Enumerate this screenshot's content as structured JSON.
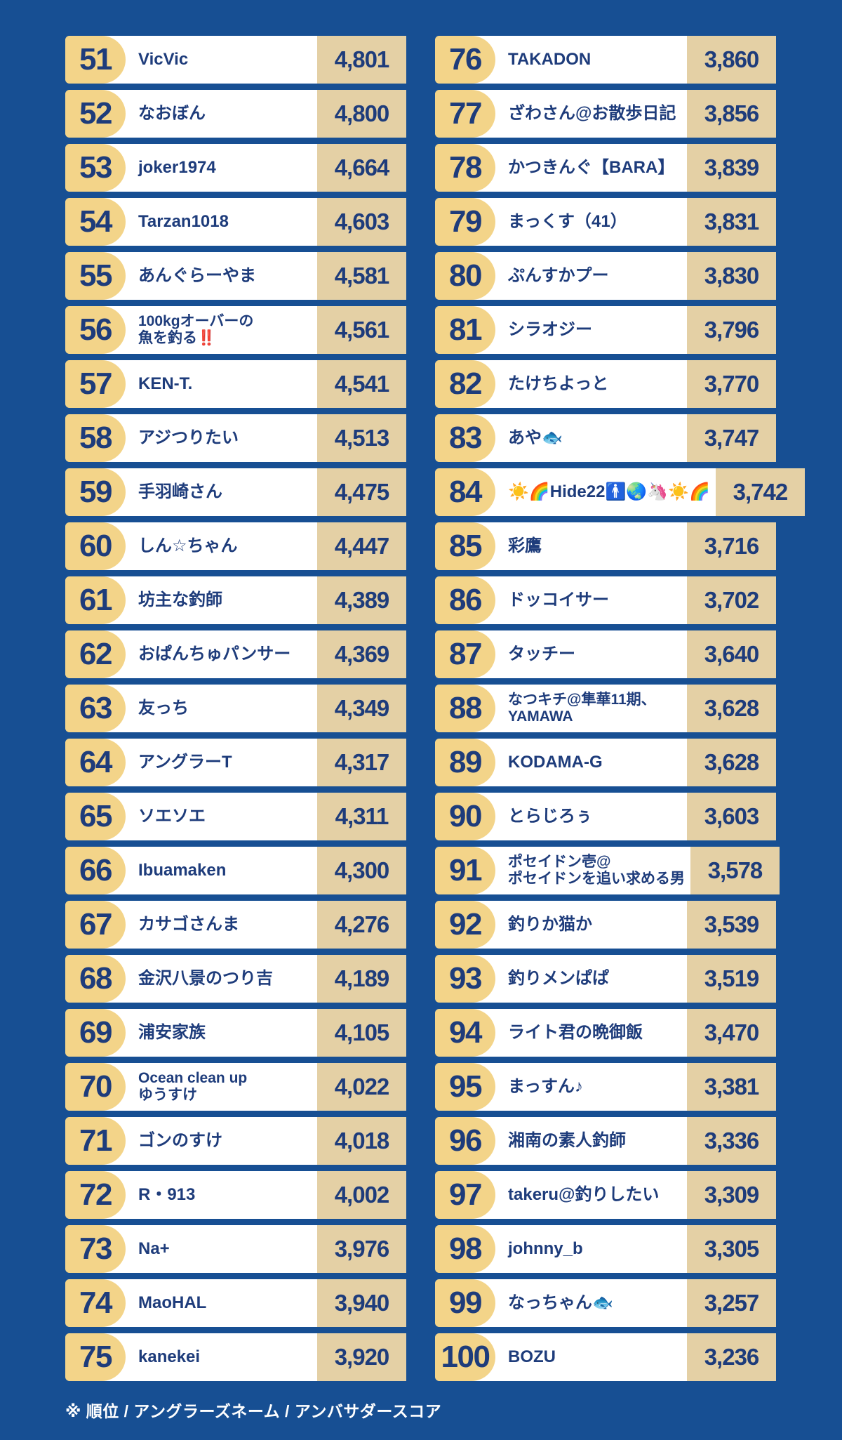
{
  "colors": {
    "background": "#174f93",
    "card": "#ffffff",
    "rank_badge": "#f3d489",
    "score_box": "#e4d0a5",
    "text_navy": "#1e3c7b",
    "footer_text": "#ffffff",
    "alert_red": "#e0342b"
  },
  "legend": {
    "note": "※ 順位 / アングラーズネーム / アンバサダースコア"
  },
  "chart_data": {
    "type": "table",
    "field_labels": [
      "順位",
      "アングラーズネーム",
      "アンバサダースコア"
    ],
    "layout": "two-column ranking list, ranks 51-75 left and 76-100 right",
    "columns": [
      {
        "name": "ranks-51-75",
        "rows": [
          {
            "rank": "51",
            "name": "VicVic",
            "score": "4,801"
          },
          {
            "rank": "52",
            "name": "なおぼん",
            "score": "4,800"
          },
          {
            "rank": "53",
            "name": "joker1974",
            "score": "4,664"
          },
          {
            "rank": "54",
            "name": "Tarzan1018",
            "score": "4,603"
          },
          {
            "rank": "55",
            "name": "あんぐらーやま",
            "score": "4,581"
          },
          {
            "rank": "56",
            "name": [
              "100kgオーバーの",
              "魚を釣る‼️"
            ],
            "score": "4,561"
          },
          {
            "rank": "57",
            "name": "KEN-T.",
            "score": "4,541"
          },
          {
            "rank": "58",
            "name": "アジつりたい",
            "score": "4,513"
          },
          {
            "rank": "59",
            "name": "手羽崎さん",
            "score": "4,475"
          },
          {
            "rank": "60",
            "name": "しん☆ちゃん",
            "score": "4,447"
          },
          {
            "rank": "61",
            "name": "坊主な釣師",
            "score": "4,389"
          },
          {
            "rank": "62",
            "name": "おぱんちゅパンサー",
            "score": "4,369"
          },
          {
            "rank": "63",
            "name": "友っち",
            "score": "4,349"
          },
          {
            "rank": "64",
            "name": "アングラーT",
            "score": "4,317"
          },
          {
            "rank": "65",
            "name": "ソエソエ",
            "score": "4,311"
          },
          {
            "rank": "66",
            "name": "Ibuamaken",
            "score": "4,300"
          },
          {
            "rank": "67",
            "name": "カサゴさんま",
            "score": "4,276"
          },
          {
            "rank": "68",
            "name": "金沢八景のつり吉",
            "score": "4,189"
          },
          {
            "rank": "69",
            "name": "浦安家族",
            "score": "4,105"
          },
          {
            "rank": "70",
            "name": [
              "Ocean clean up",
              "ゆうすけ"
            ],
            "score": "4,022"
          },
          {
            "rank": "71",
            "name": "ゴンのすけ",
            "score": "4,018"
          },
          {
            "rank": "72",
            "name": "R・913",
            "score": "4,002"
          },
          {
            "rank": "73",
            "name": "Na+",
            "score": "3,976"
          },
          {
            "rank": "74",
            "name": "MaoHAL",
            "score": "3,940"
          },
          {
            "rank": "75",
            "name": "kanekei",
            "score": "3,920"
          }
        ]
      },
      {
        "name": "ranks-76-100",
        "rows": [
          {
            "rank": "76",
            "name": "TAKADON",
            "score": "3,860"
          },
          {
            "rank": "77",
            "name": "ざわさん@お散歩日記",
            "score": "3,856"
          },
          {
            "rank": "78",
            "name": "かつきんぐ【BARA】",
            "score": "3,839"
          },
          {
            "rank": "79",
            "name": "まっくす（41）",
            "score": "3,831"
          },
          {
            "rank": "80",
            "name": "ぷんすかプー",
            "score": "3,830"
          },
          {
            "rank": "81",
            "name": "シラオジー",
            "score": "3,796"
          },
          {
            "rank": "82",
            "name": "たけちよっと",
            "score": "3,770"
          },
          {
            "rank": "83",
            "name": "あや🐟",
            "score": "3,747"
          },
          {
            "rank": "84",
            "name": "☀️🌈Hide22🚹🌏🦄☀️🌈",
            "score": "3,742"
          },
          {
            "rank": "85",
            "name": "彩鷹",
            "score": "3,716"
          },
          {
            "rank": "86",
            "name": "ドッコイサー",
            "score": "3,702"
          },
          {
            "rank": "87",
            "name": "タッチー",
            "score": "3,640"
          },
          {
            "rank": "88",
            "name": [
              "なつキチ@隼華11期、",
              "YAMAWA"
            ],
            "score": "3,628"
          },
          {
            "rank": "89",
            "name": "KODAMA-G",
            "score": "3,628"
          },
          {
            "rank": "90",
            "name": "とらじろぅ",
            "score": "3,603"
          },
          {
            "rank": "91",
            "name": [
              "ポセイドン壱@",
              "ポセイドンを追い求める男"
            ],
            "score": "3,578"
          },
          {
            "rank": "92",
            "name": "釣りか猫か",
            "score": "3,539"
          },
          {
            "rank": "93",
            "name": "釣りメンぱぱ",
            "score": "3,519"
          },
          {
            "rank": "94",
            "name": "ライト君の晩御飯",
            "score": "3,470"
          },
          {
            "rank": "95",
            "name": "まっすん♪",
            "score": "3,381"
          },
          {
            "rank": "96",
            "name": "湘南の素人釣師",
            "score": "3,336"
          },
          {
            "rank": "97",
            "name": "takeru@釣りしたい",
            "score": "3,309"
          },
          {
            "rank": "98",
            "name": "johnny_b",
            "score": "3,305"
          },
          {
            "rank": "99",
            "name": "なっちゃん🐟",
            "score": "3,257"
          },
          {
            "rank": "100",
            "name": "BOZU",
            "score": "3,236"
          }
        ]
      }
    ]
  }
}
